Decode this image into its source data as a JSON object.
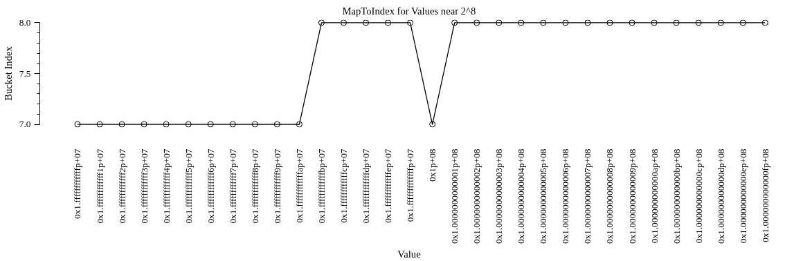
{
  "chart_data": {
    "type": "line",
    "title": "MapToIndex for Values near 2^8",
    "xlabel": "Value",
    "ylabel": "Bucket Index",
    "categories": [
      "0x1.ffffffffffffp+07",
      "0x1.ffffffffffff1p+07",
      "0x1.ffffffffffff2p+07",
      "0x1.ffffffffffff3p+07",
      "0x1.ffffffffffff4p+07",
      "0x1.ffffffffffff5p+07",
      "0x1.ffffffffffff6p+07",
      "0x1.ffffffffffff7p+07",
      "0x1.ffffffffffff8p+07",
      "0x1.ffffffffffff9p+07",
      "0x1.ffffffffffffap+07",
      "0x1.ffffffffffffbp+07",
      "0x1.ffffffffffffcp+07",
      "0x1.ffffffffffffdp+07",
      "0x1.ffffffffffffep+07",
      "0x1.fffffffffffffp+07",
      "0x1p+08",
      "0x1.0000000000001p+08",
      "0x1.0000000000002p+08",
      "0x1.0000000000003p+08",
      "0x1.0000000000004p+08",
      "0x1.0000000000005p+08",
      "0x1.0000000000006p+08",
      "0x1.0000000000007p+08",
      "0x1.0000000000008p+08",
      "0x1.0000000000009p+08",
      "0x1.000000000000ap+08",
      "0x1.000000000000bp+08",
      "0x1.000000000000cp+08",
      "0x1.000000000000dp+08",
      "0x1.000000000000ep+08",
      "0x1.000000000000fp+08"
    ],
    "series": [
      {
        "color": "#000000",
        "values": [
          7,
          7,
          7,
          7,
          7,
          7,
          7,
          7,
          7,
          7,
          7,
          8,
          8,
          8,
          8,
          8,
          7,
          8,
          8,
          8,
          8,
          8,
          8,
          8,
          8,
          8,
          8,
          8,
          8,
          8,
          8,
          8
        ]
      }
    ],
    "ylim": [
      7,
      8
    ],
    "yticks": [
      {
        "value": 7,
        "label": "7.0"
      },
      {
        "value": 7.5,
        "label": "7.5"
      },
      {
        "value": 8,
        "label": "8.0"
      }
    ],
    "marker": "circle",
    "line_style": "solid",
    "grid": false
  }
}
